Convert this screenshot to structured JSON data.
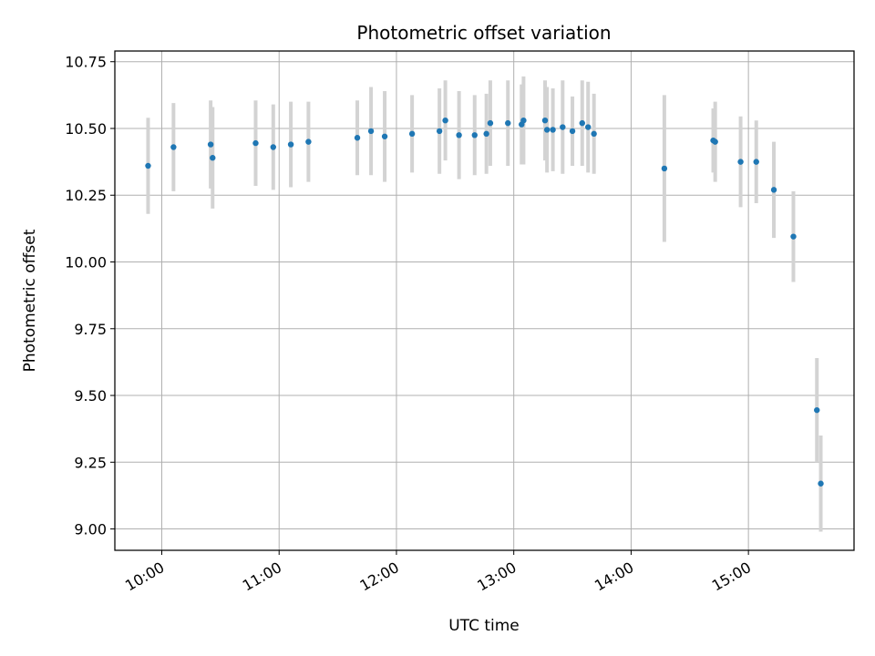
{
  "chart_data": {
    "type": "scatter",
    "title": "Photometric offset variation",
    "xlabel": "UTC time",
    "ylabel": "Photometric offset",
    "x_ticks": [
      "10:00",
      "11:00",
      "12:00",
      "13:00",
      "14:00",
      "15:00"
    ],
    "y_ticks": [
      "9.00",
      "9.25",
      "9.50",
      "9.75",
      "10.00",
      "10.25",
      "10.50",
      "10.75"
    ],
    "xlim": [
      "09:36",
      "15:54"
    ],
    "ylim": [
      8.92,
      10.79
    ],
    "grid": true,
    "colors": {
      "point": "#1f77b4",
      "errorbar": "#d3d3d3",
      "grid": "#b0b0b0",
      "axes": "#000000"
    },
    "points": [
      {
        "x": "09:53",
        "y": 10.36,
        "yerr": 0.18
      },
      {
        "x": "10:06",
        "y": 10.43,
        "yerr": 0.165
      },
      {
        "x": "10:25",
        "y": 10.44,
        "yerr": 0.165
      },
      {
        "x": "10:26",
        "y": 10.39,
        "yerr": 0.19
      },
      {
        "x": "10:48",
        "y": 10.445,
        "yerr": 0.16
      },
      {
        "x": "10:57",
        "y": 10.43,
        "yerr": 0.16
      },
      {
        "x": "11:06",
        "y": 10.44,
        "yerr": 0.16
      },
      {
        "x": "11:15",
        "y": 10.45,
        "yerr": 0.15
      },
      {
        "x": "11:40",
        "y": 10.465,
        "yerr": 0.14
      },
      {
        "x": "11:47",
        "y": 10.49,
        "yerr": 0.165
      },
      {
        "x": "11:54",
        "y": 10.47,
        "yerr": 0.17
      },
      {
        "x": "12:08",
        "y": 10.48,
        "yerr": 0.145
      },
      {
        "x": "12:22",
        "y": 10.49,
        "yerr": 0.16
      },
      {
        "x": "12:25",
        "y": 10.53,
        "yerr": 0.15
      },
      {
        "x": "12:32",
        "y": 10.475,
        "yerr": 0.165
      },
      {
        "x": "12:40",
        "y": 10.475,
        "yerr": 0.15
      },
      {
        "x": "12:46",
        "y": 10.48,
        "yerr": 0.15
      },
      {
        "x": "12:48",
        "y": 10.52,
        "yerr": 0.16
      },
      {
        "x": "12:57",
        "y": 10.52,
        "yerr": 0.16
      },
      {
        "x": "13:04",
        "y": 10.515,
        "yerr": 0.15
      },
      {
        "x": "13:05",
        "y": 10.53,
        "yerr": 0.165
      },
      {
        "x": "13:16",
        "y": 10.53,
        "yerr": 0.15
      },
      {
        "x": "13:17",
        "y": 10.495,
        "yerr": 0.16
      },
      {
        "x": "13:20",
        "y": 10.495,
        "yerr": 0.155
      },
      {
        "x": "13:25",
        "y": 10.505,
        "yerr": 0.175
      },
      {
        "x": "13:30",
        "y": 10.49,
        "yerr": 0.13
      },
      {
        "x": "13:35",
        "y": 10.52,
        "yerr": 0.16
      },
      {
        "x": "13:38",
        "y": 10.505,
        "yerr": 0.17
      },
      {
        "x": "13:41",
        "y": 10.48,
        "yerr": 0.15
      },
      {
        "x": "14:17",
        "y": 10.35,
        "yerr": 0.275
      },
      {
        "x": "14:42",
        "y": 10.455,
        "yerr": 0.12
      },
      {
        "x": "14:43",
        "y": 10.45,
        "yerr": 0.15
      },
      {
        "x": "14:56",
        "y": 10.375,
        "yerr": 0.17
      },
      {
        "x": "15:04",
        "y": 10.375,
        "yerr": 0.155
      },
      {
        "x": "15:13",
        "y": 10.27,
        "yerr": 0.18
      },
      {
        "x": "15:23",
        "y": 10.095,
        "yerr": 0.17
      },
      {
        "x": "15:35",
        "y": 9.445,
        "yerr": 0.195
      },
      {
        "x": "15:37",
        "y": 9.17,
        "yerr": 0.18
      }
    ]
  }
}
